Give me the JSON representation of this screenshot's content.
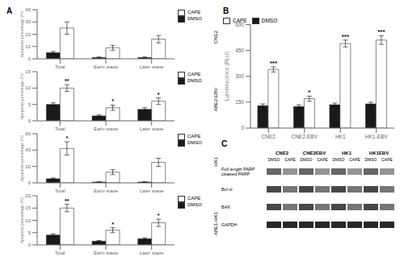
{
  "chart_data": [
    {
      "type": "bar",
      "title": "A",
      "subtitle": "CNE2",
      "ylabel": "Apoptosis percentage (%)",
      "categories": [
        "Total",
        "Early stage",
        "Later stage"
      ],
      "series": [
        {
          "name": "DMSO",
          "color": "#1a1a1a",
          "values": [
            5,
            1,
            1
          ],
          "errors": [
            1,
            0.5,
            0.5
          ]
        },
        {
          "name": "CAPE",
          "color": "#ffffff",
          "values": [
            25,
            9,
            16
          ],
          "errors": [
            5,
            2,
            3
          ],
          "annotations": [
            null,
            null,
            null
          ]
        }
      ],
      "ylim": [
        0,
        40
      ],
      "yticks": [
        0,
        10,
        20,
        30,
        40
      ],
      "grid": false,
      "legend": "upper right"
    },
    {
      "type": "bar",
      "subtitle": "ABE2-EBV",
      "ylabel": "Apoptosis percentage (%)",
      "categories": [
        "Total",
        "Early stage",
        "Later stage"
      ],
      "series": [
        {
          "name": "DMSO",
          "color": "#1a1a1a",
          "values": [
            5,
            1.5,
            3.5
          ],
          "errors": [
            0.5,
            0.3,
            0.5
          ]
        },
        {
          "name": "CAPE",
          "color": "#ffffff",
          "values": [
            10,
            4,
            6
          ],
          "errors": [
            1,
            0.8,
            1
          ],
          "annotations": [
            "**",
            "*",
            "*"
          ]
        }
      ],
      "ylim": [
        0,
        15
      ],
      "yticks": [
        0,
        5,
        10,
        15
      ],
      "grid": false,
      "legend": "upper right"
    },
    {
      "type": "bar",
      "subtitle": "HK1",
      "ylabel": "Apoptosis percentage (%)",
      "categories": [
        "Total",
        "Early stage",
        "Later stage"
      ],
      "series": [
        {
          "name": "DMSO",
          "color": "#1a1a1a",
          "values": [
            5,
            1,
            1
          ],
          "errors": [
            1,
            0.3,
            0.3
          ]
        },
        {
          "name": "CAPE",
          "color": "#ffffff",
          "values": [
            42,
            13,
            25
          ],
          "errors": [
            8,
            3,
            5
          ],
          "annotations": [
            "*",
            null,
            null
          ]
        }
      ],
      "ylim": [
        0,
        60
      ],
      "yticks": [
        0,
        20,
        40,
        60
      ],
      "grid": false,
      "legend": "upper right"
    },
    {
      "type": "bar",
      "subtitle": "ABE1-HK1",
      "ylabel": "Apoptosis percentage (%)",
      "categories": [
        "Total",
        "Early stage",
        "Later stage"
      ],
      "series": [
        {
          "name": "DMSO",
          "color": "#1a1a1a",
          "values": [
            4,
            1.5,
            2.5
          ],
          "errors": [
            0.5,
            0.3,
            0.4
          ]
        },
        {
          "name": "CAPE",
          "color": "#ffffff",
          "values": [
            15,
            6,
            9
          ],
          "errors": [
            1.5,
            1,
            1.5
          ],
          "annotations": [
            "**",
            "*",
            "*"
          ]
        }
      ],
      "ylim": [
        0,
        20
      ],
      "yticks": [
        0,
        5,
        10,
        15,
        20
      ],
      "grid": false,
      "legend": "upper right"
    },
    {
      "type": "bar",
      "title": "B",
      "ylabel": "Luminescence (RLU)",
      "categories": [
        "CNE2",
        "CNE2-EBV",
        "HK1",
        "HK1-EBV"
      ],
      "series": [
        {
          "name": "DMSO",
          "color": "#1a1a1a",
          "values": [
            130,
            125,
            135,
            140
          ],
          "errors": [
            10,
            10,
            10,
            10
          ]
        },
        {
          "name": "CAPE",
          "color": "#ffffff",
          "values": [
            340,
            170,
            490,
            510
          ],
          "errors": [
            15,
            15,
            20,
            25
          ],
          "annotations": [
            "***",
            "*",
            "***",
            "***"
          ]
        }
      ],
      "ylim": [
        0,
        600
      ],
      "yticks": [
        0,
        150,
        300,
        450,
        600
      ],
      "grid": false,
      "legend": "upper left"
    },
    {
      "type": "blot",
      "title": "C",
      "category_groups": [
        "CNE2",
        "CNE2EBV",
        "HK1",
        "HK1EBV"
      ],
      "categories": [
        "DMSO",
        "CAPE",
        "DMSO",
        "CAPE",
        "DMSO",
        "CAPE",
        "DMSO",
        "CAPE"
      ],
      "series": [
        {
          "name": "Full length PARP\ncleaved PARP",
          "colors": [
            "#555555",
            "#888888",
            "#555555",
            "#888888",
            "#555555",
            "#888888",
            "#555555",
            "#888888"
          ]
        },
        {
          "name": "Bcl-xl",
          "colors": [
            "#333333",
            "#666666",
            "#333333",
            "#666666",
            "#333333",
            "#666666",
            "#333333",
            "#666666"
          ]
        },
        {
          "name": "BAX",
          "colors": [
            "#333333",
            "#666666",
            "#333333",
            "#666666",
            "#333333",
            "#666666",
            "#333333",
            "#666666"
          ]
        },
        {
          "name": "GAPDH",
          "colors": [
            "#111111",
            "#111111",
            "#111111",
            "#111111",
            "#111111",
            "#111111",
            "#111111",
            "#111111"
          ]
        }
      ]
    }
  ]
}
